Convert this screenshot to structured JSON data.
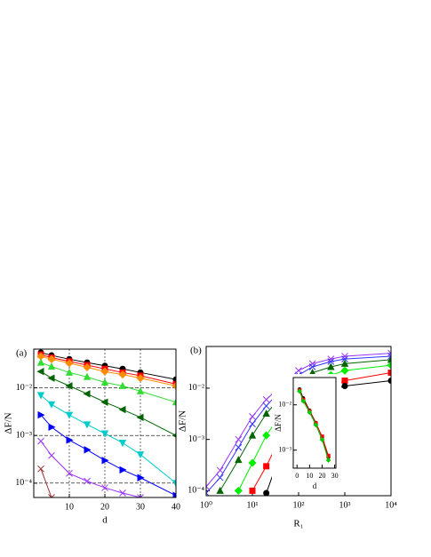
{
  "chart_data": [
    {
      "type": "line",
      "panel_label": "(a)",
      "xlabel": "d",
      "ylabel": "ΔF/N",
      "xlim": [
        0,
        40
      ],
      "xticks": [
        10,
        20,
        30,
        40
      ],
      "ylog": true,
      "ylim": [
        5e-05,
        0.065
      ],
      "yticks": [
        {
          "value": 0.01,
          "label": "10⁻²"
        },
        {
          "value": 0.001,
          "label": "10⁻³"
        },
        {
          "value": 0.0001,
          "label": "10⁻⁴"
        }
      ],
      "grid": true,
      "x": [
        2,
        5,
        10,
        15,
        20,
        25,
        30,
        40
      ],
      "series": [
        {
          "color": "#000000",
          "marker": "circle",
          "values": [
            0.055,
            0.048,
            0.04,
            0.034,
            0.029,
            0.025,
            0.021,
            0.015
          ]
        },
        {
          "color": "#ff0000",
          "marker": "square",
          "values": [
            0.05,
            0.043,
            0.036,
            0.03,
            0.025,
            0.021,
            0.018,
            0.012
          ]
        },
        {
          "color": "#ff8c00",
          "marker": "diamond",
          "values": [
            0.046,
            0.04,
            0.033,
            0.027,
            0.022,
            0.019,
            0.016,
            0.011
          ]
        },
        {
          "color": "#33dd33",
          "marker": "triangle-up",
          "values": [
            0.034,
            0.028,
            0.021,
            0.017,
            0.013,
            0.011,
            0.0085,
            0.005
          ]
        },
        {
          "color": "#006400",
          "marker": "triangle-left",
          "values": [
            0.022,
            0.016,
            0.011,
            0.0075,
            0.005,
            0.0035,
            0.0024,
            0.001
          ]
        },
        {
          "color": "#00cccc",
          "marker": "triangle-down",
          "values": [
            0.007,
            0.0045,
            0.0027,
            0.0017,
            0.0011,
            0.0007,
            0.0004,
            0.0001
          ]
        },
        {
          "color": "#0000ff",
          "marker": "triangle-right",
          "values": [
            0.0027,
            0.0015,
            0.0008,
            0.0005,
            0.0003,
            0.00019,
            0.00013,
            5.5e-05
          ]
        },
        {
          "color": "#9933ff",
          "marker": "x",
          "values": [
            0.00076,
            0.00038,
            0.00016,
            0.00011,
            8e-05,
            6.2e-05,
            5e-05,
            null
          ]
        },
        {
          "color": "#993333",
          "marker": "x",
          "values": [
            0.0002,
            5e-05,
            null,
            null,
            null,
            null,
            null,
            null
          ]
        }
      ]
    },
    {
      "type": "line",
      "panel_label": "(b)",
      "xlabel": "R₁",
      "ylabel": "ΔF/N",
      "xlog": true,
      "xlim": [
        1,
        10000
      ],
      "xticks": [
        {
          "value": 1,
          "label": "10⁰"
        },
        {
          "value": 10,
          "label": "10¹"
        },
        {
          "value": 100,
          "label": "10²"
        },
        {
          "value": 1000,
          "label": "10³"
        },
        {
          "value": 10000,
          "label": "10⁴"
        }
      ],
      "ylog": true,
      "ylim": [
        8e-05,
        0.065
      ],
      "yticks": [
        {
          "value": 0.01,
          "label": "10⁻²"
        },
        {
          "value": 0.001,
          "label": "10⁻³"
        },
        {
          "value": 0.0001,
          "label": "10⁻⁴"
        }
      ],
      "grid": false,
      "x": [
        1,
        2,
        5,
        10,
        20,
        50,
        100,
        200,
        500,
        1000,
        10000
      ],
      "series": [
        {
          "color": "#9933ff",
          "marker": "x",
          "values": [
            0.00012,
            0.00025,
            0.001,
            0.0028,
            0.006,
            0.013,
            0.022,
            0.03,
            0.037,
            0.042,
            0.048
          ]
        },
        {
          "color": "#3333ff",
          "marker": "x",
          "values": [
            9e-05,
            0.00018,
            0.0007,
            0.002,
            0.0045,
            0.011,
            0.018,
            0.026,
            0.033,
            0.037,
            0.042
          ]
        },
        {
          "color": "#006400",
          "marker": "triangle-up",
          "values": [
            null,
            0.0001,
            0.0004,
            0.0012,
            0.0032,
            0.008,
            0.014,
            0.02,
            0.026,
            0.03,
            0.036
          ]
        },
        {
          "color": "#00ee00",
          "marker": "diamond",
          "values": [
            null,
            null,
            0.0001,
            0.00035,
            0.0012,
            0.004,
            0.008,
            0.013,
            0.018,
            0.022,
            0.028
          ]
        },
        {
          "color": "#ff0000",
          "marker": "square",
          "values": [
            null,
            null,
            null,
            0.0001,
            0.0003,
            0.0016,
            0.004,
            0.007,
            0.011,
            0.014,
            0.02
          ]
        },
        {
          "color": "#000000",
          "marker": "circle",
          "values": [
            null,
            null,
            null,
            null,
            9e-05,
            0.0009,
            0.0035,
            0.0065,
            0.009,
            0.011,
            0.014
          ]
        }
      ]
    },
    {
      "type": "line",
      "xlabel": "d",
      "ylabel": "ΔF/N",
      "xlim": [
        -3,
        31
      ],
      "xticks": [
        0,
        10,
        20,
        30
      ],
      "ylog": true,
      "ylim": [
        0.0004,
        0.04
      ],
      "yticks": [
        {
          "value": 0.01,
          "label": "10⁻²"
        },
        {
          "value": 0.001,
          "label": "10⁻³"
        }
      ],
      "grid": false,
      "x": [
        2,
        5,
        10,
        15,
        20,
        25
      ],
      "series": [
        {
          "color": "#000000",
          "marker": "circle",
          "values": [
            0.022,
            0.014,
            0.0075,
            0.004,
            0.0019,
            0.0007
          ]
        },
        {
          "color": "#ff0000",
          "marker": "square",
          "values": [
            0.021,
            0.013,
            0.0072,
            0.0039,
            0.002,
            0.00075
          ]
        },
        {
          "color": "#00cc00",
          "marker": "diamond",
          "values": [
            0.02,
            0.012,
            0.0068,
            0.0036,
            0.0017,
            0.0006
          ]
        }
      ]
    }
  ]
}
